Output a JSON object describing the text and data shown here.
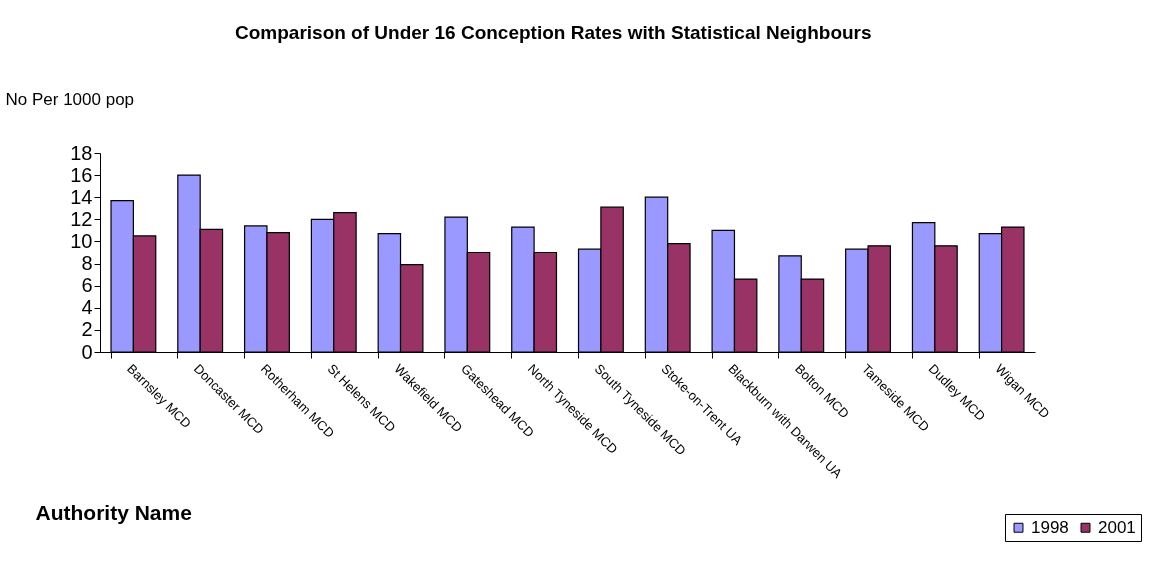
{
  "chart_data": {
    "type": "bar",
    "title": "Comparison of Under 16 Conception Rates with Statistical Neighbours",
    "ylabel": "No Per 1000 pop",
    "xlabel": "Authority Name",
    "categories": [
      "Barnsley MCD",
      "Doncaster MCD",
      "Rotherham MCD",
      "St Helens MCD",
      "Wakefield MCD",
      "Gateshead MCD",
      "North Tyneside MCD",
      "South Tyneside MCD",
      "Stoke-on-Trent UA",
      "Blackburn with Darwen UA",
      "Bolton MCD",
      "Tameside MCD",
      "Dudley MCD",
      "Wigan MCD"
    ],
    "series": [
      {
        "name": "1998",
        "color": "#9999ff",
        "values": [
          13.7,
          16.0,
          11.4,
          12.0,
          10.7,
          12.2,
          11.3,
          9.3,
          14.0,
          11.0,
          8.7,
          9.3,
          11.7,
          10.7
        ]
      },
      {
        "name": "2001",
        "color": "#993366",
        "values": [
          10.5,
          11.1,
          10.8,
          12.6,
          7.9,
          9.0,
          9.0,
          13.1,
          9.8,
          6.6,
          6.6,
          9.6,
          9.6,
          11.3
        ]
      }
    ],
    "ylim": [
      0,
      18
    ],
    "yticks": [
      0,
      2,
      4,
      6,
      8,
      10,
      12,
      14,
      16,
      18
    ],
    "grid": false,
    "legend": "bottom right"
  }
}
